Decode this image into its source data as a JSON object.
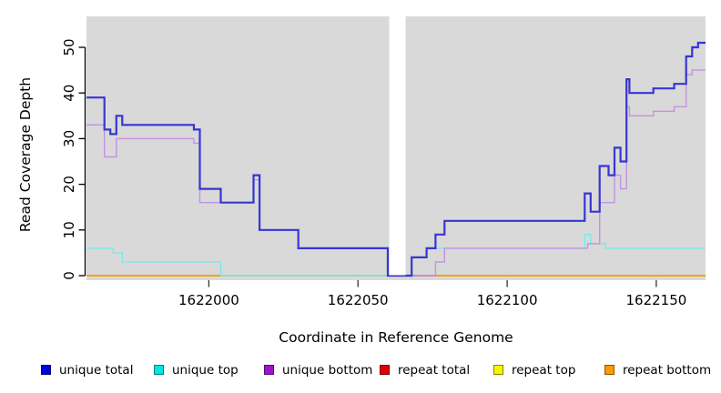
{
  "chart_data": {
    "type": "line",
    "subtype": "step-after",
    "title": "",
    "xlabel": "Coordinate in Reference Genome",
    "ylabel": "Read Coverage Depth",
    "xlim": [
      1621959,
      1622166.5
    ],
    "ylim": [
      0,
      56.8
    ],
    "x_ticks": [
      1622000,
      1622050,
      1622100,
      1622150
    ],
    "y_ticks": [
      0,
      10,
      20,
      30,
      40,
      50
    ],
    "grid": false,
    "plot_bg_color": "#d9d9d9",
    "masked_region": {
      "x1": 1622060.5,
      "x2": 1622066,
      "color": "#ffffff"
    },
    "legend_position": "bottom",
    "series": [
      {
        "name": "unique total",
        "line_color": "#3636d2",
        "legend_color": "#0000e0",
        "line_width": 2.2,
        "points": [
          [
            1621959,
            39
          ],
          [
            1621965,
            32
          ],
          [
            1621967,
            31
          ],
          [
            1621969,
            35
          ],
          [
            1621971,
            33
          ],
          [
            1621995,
            32
          ],
          [
            1621997,
            19
          ],
          [
            1622004,
            16
          ],
          [
            1622015,
            22
          ],
          [
            1622017,
            10
          ],
          [
            1622030,
            6
          ],
          [
            1622060,
            0
          ],
          [
            1622068,
            4
          ],
          [
            1622073,
            6
          ],
          [
            1622076,
            9
          ],
          [
            1622079,
            12
          ],
          [
            1622126,
            18
          ],
          [
            1622128,
            14
          ],
          [
            1622131,
            24
          ],
          [
            1622134,
            22
          ],
          [
            1622136,
            28
          ],
          [
            1622138,
            25
          ],
          [
            1622140,
            43
          ],
          [
            1622141,
            40
          ],
          [
            1622149,
            41
          ],
          [
            1622156,
            42
          ],
          [
            1622160,
            48
          ],
          [
            1622162,
            50
          ],
          [
            1622164,
            51
          ],
          [
            1622166.5,
            51
          ]
        ]
      },
      {
        "name": "unique top",
        "line_color": "#7be9e9",
        "legend_color": "#00e5e5",
        "line_width": 1.4,
        "points": [
          [
            1621959,
            6
          ],
          [
            1621968,
            5
          ],
          [
            1621971,
            3
          ],
          [
            1622004,
            0
          ],
          [
            1622068,
            4
          ],
          [
            1622073,
            6
          ],
          [
            1622126,
            9
          ],
          [
            1622128,
            7
          ],
          [
            1622133,
            6
          ],
          [
            1622166.5,
            6
          ]
        ]
      },
      {
        "name": "unique bottom",
        "line_color": "#c492e2",
        "legend_color": "#9916cc",
        "line_width": 1.4,
        "points": [
          [
            1621959,
            33
          ],
          [
            1621965,
            26
          ],
          [
            1621969,
            30
          ],
          [
            1621995,
            29
          ],
          [
            1621997,
            16
          ],
          [
            1622015,
            21
          ],
          [
            1622017,
            10
          ],
          [
            1622030,
            6
          ],
          [
            1622060,
            0
          ],
          [
            1622076,
            3
          ],
          [
            1622079,
            6
          ],
          [
            1622127,
            7
          ],
          [
            1622131,
            16
          ],
          [
            1622136,
            22
          ],
          [
            1622138,
            19
          ],
          [
            1622140,
            37
          ],
          [
            1622141,
            35
          ],
          [
            1622149,
            36
          ],
          [
            1622156,
            37
          ],
          [
            1622160,
            44
          ],
          [
            1622162,
            45
          ],
          [
            1622166.5,
            45
          ]
        ]
      },
      {
        "name": "repeat total",
        "line_color": "#dd1111",
        "legend_color": "#e00000",
        "line_width": 1.4,
        "points": [
          [
            1621959,
            0
          ],
          [
            1622166.5,
            0
          ]
        ]
      },
      {
        "name": "repeat top",
        "line_color": "#f5f500",
        "legend_color": "#f5f500",
        "line_width": 1.4,
        "points": [
          [
            1621959,
            0
          ],
          [
            1622166.5,
            0
          ]
        ]
      },
      {
        "name": "repeat bottom",
        "line_color": "#ff9900",
        "legend_color": "#ff9900",
        "line_width": 1.6,
        "points": [
          [
            1621959,
            0
          ],
          [
            1622166.5,
            0
          ]
        ]
      }
    ],
    "zero_line_overlap_tints": [
      {
        "x1": 1622004,
        "x2": 1622060.5,
        "color": "#8fcf9a"
      },
      {
        "x1": 1622066,
        "x2": 1622076,
        "color": "#c45a96"
      }
    ]
  }
}
